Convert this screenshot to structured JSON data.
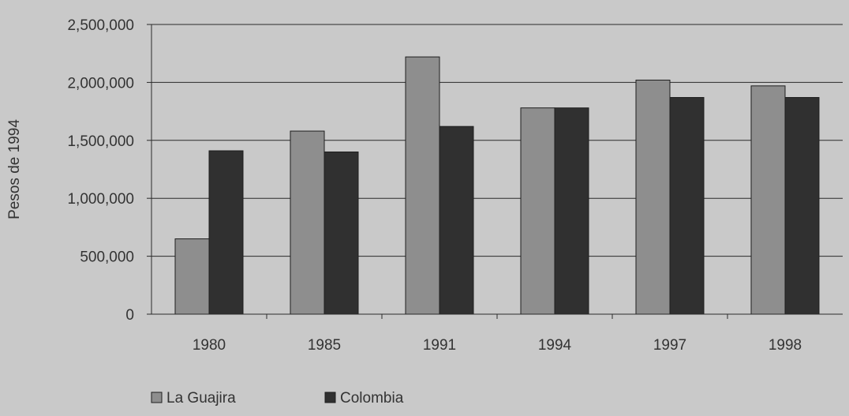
{
  "chart_data": {
    "type": "bar",
    "categories": [
      "1980",
      "1985",
      "1991",
      "1994",
      "1997",
      "1998"
    ],
    "series": [
      {
        "name": "La Guajira",
        "color": "#8e8e8e",
        "values": [
          650000,
          1580000,
          2220000,
          1780000,
          2020000,
          1970000
        ]
      },
      {
        "name": "Colombia",
        "color": "#303030",
        "values": [
          1410000,
          1400000,
          1620000,
          1780000,
          1870000,
          1870000
        ]
      }
    ],
    "ylabel": "Pesos de 1994",
    "ylim": [
      0,
      2500000
    ],
    "yticks": [
      0,
      500000,
      1000000,
      1500000,
      2000000,
      2500000
    ],
    "ytick_labels": [
      "0",
      "500,000",
      "1,000,000",
      "1,500,000",
      "2,000,000",
      "2,500,000"
    ],
    "grid": true,
    "legend_position": "bottom-left"
  }
}
